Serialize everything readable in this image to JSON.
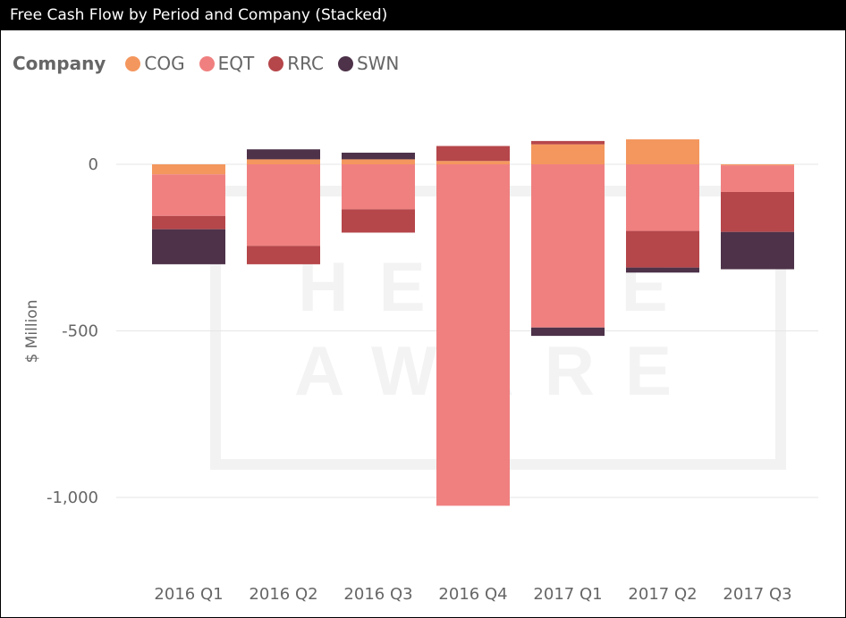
{
  "header": {
    "title": "Free Cash Flow by Period and Company (Stacked)"
  },
  "legend": {
    "title": "Company",
    "items": [
      {
        "label": "COG",
        "color": "#F4975E"
      },
      {
        "label": "EQT",
        "color": "#F08080"
      },
      {
        "label": "RRC",
        "color": "#B5464A"
      },
      {
        "label": "SWN",
        "color": "#4D3249"
      }
    ]
  },
  "chart_data": {
    "type": "bar",
    "stacked": true,
    "title": "Free Cash Flow by Period and Company (Stacked)",
    "ylabel": "$ Million",
    "xlabel": "",
    "categories": [
      "2016 Q1",
      "2016 Q2",
      "2016 Q3",
      "2016 Q4",
      "2017 Q1",
      "2017 Q2",
      "2017 Q3"
    ],
    "series": [
      {
        "name": "COG",
        "color": "#F4975E",
        "values": [
          -30,
          15,
          15,
          10,
          60,
          75,
          -3
        ]
      },
      {
        "name": "EQT",
        "color": "#F08080",
        "values": [
          -125,
          -245,
          -135,
          -1025,
          -490,
          -200,
          -80
        ]
      },
      {
        "name": "RRC",
        "color": "#B5464A",
        "values": [
          -40,
          -55,
          -70,
          45,
          10,
          -110,
          -120
        ]
      },
      {
        "name": "SWN",
        "color": "#4D3249",
        "values": [
          -105,
          30,
          20,
          0,
          -25,
          -15,
          -112
        ]
      }
    ],
    "yticks": [
      0,
      -500,
      -1000
    ],
    "ytick_labels": [
      "0",
      "-500",
      "-1,000"
    ],
    "ylim": [
      -1100,
      110
    ],
    "grid": true,
    "legend_position": "top-left",
    "watermark": [
      "HEDGE",
      "AWARE"
    ]
  }
}
